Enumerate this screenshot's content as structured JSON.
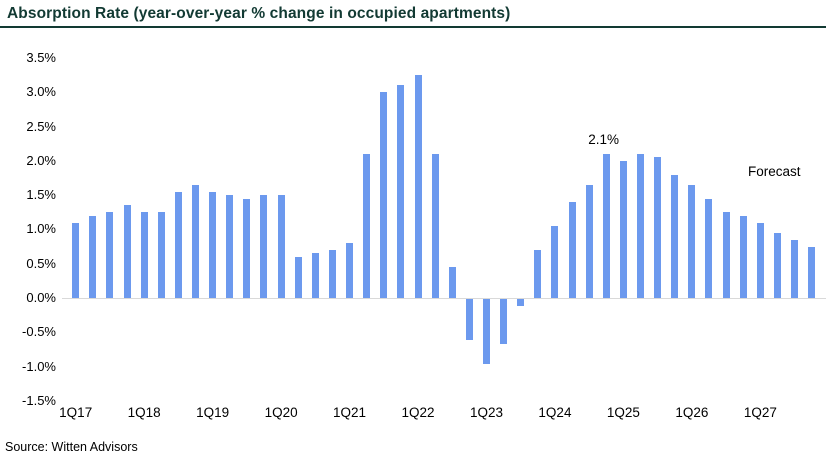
{
  "header": {
    "title": "Absorption Rate (year-over-year % change in occupied apartments)"
  },
  "footer": {
    "source": "Source: Witten Advisors"
  },
  "colors": {
    "title_teal": "#123a33",
    "bar_blue": "#6c99ee",
    "zero_line_gray": "#d9d9d9",
    "text_black": "#000000"
  },
  "chart_data": {
    "type": "bar",
    "title": "Absorption Rate (year-over-year % change in occupied apartments)",
    "xlabel": "",
    "ylabel": "",
    "categories": [
      "1Q17",
      "2Q17",
      "3Q17",
      "4Q17",
      "1Q18",
      "2Q18",
      "3Q18",
      "4Q18",
      "1Q19",
      "2Q19",
      "3Q19",
      "4Q19",
      "1Q20",
      "2Q20",
      "3Q20",
      "4Q20",
      "1Q21",
      "2Q21",
      "3Q21",
      "4Q21",
      "1Q22",
      "2Q22",
      "3Q22",
      "4Q22",
      "1Q23",
      "2Q23",
      "3Q23",
      "4Q23",
      "1Q24",
      "2Q24",
      "3Q24",
      "4Q24",
      "1Q25",
      "2Q25",
      "3Q25",
      "4Q25",
      "1Q26",
      "2Q26",
      "3Q26",
      "4Q26",
      "1Q27",
      "2Q27",
      "3Q27",
      "4Q27"
    ],
    "values": [
      1.1,
      1.2,
      1.25,
      1.35,
      1.25,
      1.25,
      1.55,
      1.65,
      1.55,
      1.5,
      1.45,
      1.5,
      1.5,
      0.6,
      0.65,
      0.7,
      0.8,
      2.1,
      3.0,
      3.1,
      3.25,
      2.1,
      0.45,
      -0.6,
      -0.95,
      -0.65,
      -0.1,
      0.7,
      1.05,
      1.4,
      1.65,
      2.1,
      2.0,
      2.1,
      2.05,
      1.8,
      1.65,
      1.45,
      1.25,
      1.2,
      1.1,
      0.95,
      0.85,
      0.75
    ],
    "x_tick_labels": [
      "1Q17",
      "1Q18",
      "1Q19",
      "1Q20",
      "1Q21",
      "1Q22",
      "1Q23",
      "1Q24",
      "1Q25",
      "1Q26",
      "1Q27"
    ],
    "y_tick_labels": [
      "3.5%",
      "3.0%",
      "2.5%",
      "2.0%",
      "1.5%",
      "1.0%",
      "0.5%",
      "0.0%",
      "-0.5%",
      "-1.0%",
      "-1.5%"
    ],
    "ylim": [
      -1.5,
      3.5
    ],
    "y_step": 0.5,
    "grid": "zero-line-only",
    "legend": "none",
    "annotations": [
      {
        "text": "2.1%",
        "type": "bar-label",
        "bar_index": 31
      },
      {
        "text": "Forecast",
        "type": "float-label"
      }
    ]
  }
}
